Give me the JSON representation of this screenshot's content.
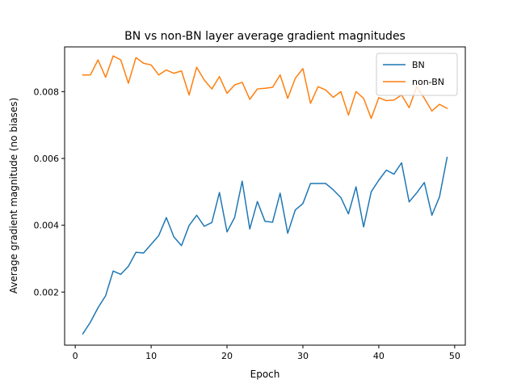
{
  "chart_data": {
    "type": "line",
    "title": "BN vs non-BN layer average gradient magnitudes",
    "xlabel": "Epoch",
    "ylabel": "Average gradient magnitude (no biases)",
    "xlim": [
      -1.4,
      51.4
    ],
    "ylim": [
      0.00041,
      0.00934
    ],
    "xticks": [
      0,
      10,
      20,
      30,
      40,
      50
    ],
    "xtick_labels": [
      "0",
      "10",
      "20",
      "30",
      "40",
      "50"
    ],
    "yticks": [
      0.002,
      0.004,
      0.006,
      0.008
    ],
    "ytick_labels": [
      "0.002",
      "0.004",
      "0.006",
      "0.008"
    ],
    "grid": false,
    "legend": "top-right",
    "x": [
      1,
      2,
      3,
      4,
      5,
      6,
      7,
      8,
      9,
      10,
      11,
      12,
      13,
      14,
      15,
      16,
      17,
      18,
      19,
      20,
      21,
      22,
      23,
      24,
      25,
      26,
      27,
      28,
      29,
      30,
      31,
      32,
      33,
      34,
      35,
      36,
      37,
      38,
      39,
      40,
      41,
      42,
      43,
      44,
      45,
      46,
      47,
      48,
      49
    ],
    "series": [
      {
        "name": "BN",
        "color": "#1f77b4",
        "values": [
          0.00075,
          0.0011,
          0.00153,
          0.00189,
          0.00263,
          0.00253,
          0.00277,
          0.00319,
          0.00317,
          0.00343,
          0.00369,
          0.00423,
          0.00365,
          0.00339,
          0.00399,
          0.0043,
          0.00397,
          0.00408,
          0.00498,
          0.0038,
          0.00423,
          0.00532,
          0.00389,
          0.00471,
          0.00412,
          0.00409,
          0.00496,
          0.00376,
          0.00446,
          0.00465,
          0.00525,
          0.00525,
          0.00525,
          0.00506,
          0.00483,
          0.00434,
          0.00515,
          0.00395,
          0.005,
          0.00535,
          0.00565,
          0.00553,
          0.00587,
          0.0047,
          0.00497,
          0.00528,
          0.0043,
          0.00485,
          0.00603
        ]
      },
      {
        "name": "non-BN",
        "color": "#ff7f0e",
        "values": [
          0.0085,
          0.0085,
          0.00895,
          0.00843,
          0.00907,
          0.00895,
          0.00825,
          0.00902,
          0.00885,
          0.0088,
          0.0085,
          0.00865,
          0.00855,
          0.00862,
          0.0079,
          0.00873,
          0.00835,
          0.00808,
          0.00845,
          0.00795,
          0.0082,
          0.00828,
          0.00777,
          0.00808,
          0.0081,
          0.00813,
          0.0085,
          0.0078,
          0.0084,
          0.00869,
          0.00765,
          0.00815,
          0.00805,
          0.00783,
          0.008,
          0.0073,
          0.008,
          0.0078,
          0.0072,
          0.00782,
          0.00773,
          0.00775,
          0.0079,
          0.00752,
          0.00815,
          0.0078,
          0.00742,
          0.00762,
          0.0075
        ]
      }
    ]
  }
}
